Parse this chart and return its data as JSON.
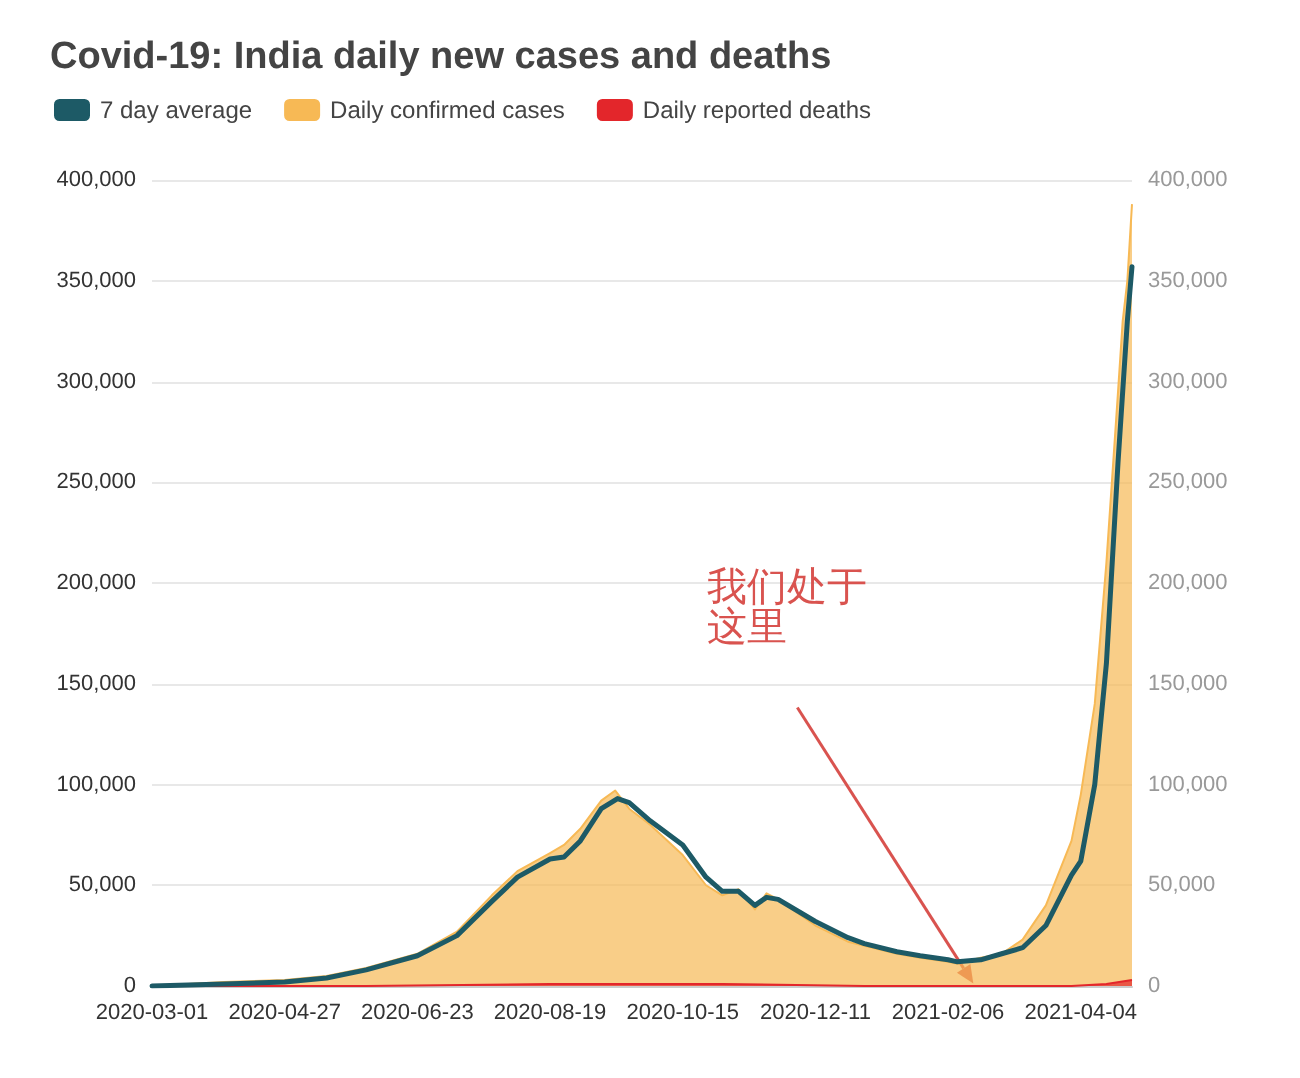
{
  "chart_data": {
    "type": "line",
    "title": "Covid-19: India daily new cases and deaths",
    "xlim": [
      "2020-03-01",
      "2021-04-26"
    ],
    "xticks": [
      "2020-03-01",
      "2020-04-27",
      "2020-06-23",
      "2020-08-19",
      "2020-10-15",
      "2020-12-11",
      "2021-02-06",
      "2021-04-04"
    ],
    "ylim": [
      0,
      400000
    ],
    "yticks": [
      {
        "value": 0,
        "label": "0"
      },
      {
        "value": 50000,
        "label": "50,000"
      },
      {
        "value": 100000,
        "label": "100,000"
      },
      {
        "value": 150000,
        "label": "150,000"
      },
      {
        "value": 200000,
        "label": "200,000"
      },
      {
        "value": 250000,
        "label": "250,000"
      },
      {
        "value": 300000,
        "label": "300,000"
      },
      {
        "value": 350000,
        "label": "350,000"
      },
      {
        "value": 400000,
        "label": "400,000"
      }
    ],
    "y2lim": [
      0,
      400000
    ],
    "y2ticks": [
      {
        "value": 0,
        "label": "0"
      },
      {
        "value": 50000,
        "label": "50,000"
      },
      {
        "value": 100000,
        "label": "100,000"
      },
      {
        "value": 150000,
        "label": "150,000"
      },
      {
        "value": 200000,
        "label": "200,000"
      },
      {
        "value": 250000,
        "label": "250,000"
      },
      {
        "value": 300000,
        "label": "300,000"
      },
      {
        "value": 350000,
        "label": "350,000"
      },
      {
        "value": 400000,
        "label": "400,000"
      }
    ],
    "grid": "y",
    "legend": "top left",
    "marker": "none",
    "line_style": "solid",
    "series": [
      {
        "name": "7 day average",
        "color": "#1d5a66",
        "x": [
          "2020-03-01",
          "2020-04-01",
          "2020-04-27",
          "2020-05-15",
          "2020-06-01",
          "2020-06-23",
          "2020-07-10",
          "2020-07-25",
          "2020-08-05",
          "2020-08-19",
          "2020-08-25",
          "2020-09-01",
          "2020-09-10",
          "2020-09-17",
          "2020-09-22",
          "2020-10-01",
          "2020-10-15",
          "2020-10-25",
          "2020-11-01",
          "2020-11-08",
          "2020-11-15",
          "2020-11-20",
          "2020-11-25",
          "2020-12-11",
          "2020-12-25",
          "2021-01-01",
          "2021-01-15",
          "2021-01-25",
          "2021-02-06",
          "2021-02-10",
          "2021-02-20",
          "2021-03-01",
          "2021-03-10",
          "2021-03-20",
          "2021-03-31",
          "2021-04-04",
          "2021-04-10",
          "2021-04-15",
          "2021-04-20",
          "2021-04-24",
          "2021-04-26"
        ],
        "values": [
          0,
          1000,
          2000,
          4000,
          8000,
          15000,
          25000,
          42000,
          54000,
          63000,
          64000,
          72000,
          88000,
          93000,
          91000,
          82000,
          70000,
          54000,
          47000,
          47000,
          40000,
          44000,
          43000,
          32000,
          24000,
          21000,
          17000,
          15000,
          13000,
          12000,
          13000,
          16000,
          19000,
          30000,
          55000,
          62000,
          100000,
          160000,
          260000,
          330000,
          357000
        ]
      },
      {
        "name": "Daily confirmed cases",
        "type": "area",
        "color": "#f7b955",
        "x": [
          "2020-03-01",
          "2020-04-01",
          "2020-04-27",
          "2020-05-15",
          "2020-06-01",
          "2020-06-23",
          "2020-07-10",
          "2020-07-25",
          "2020-08-05",
          "2020-08-19",
          "2020-08-25",
          "2020-09-01",
          "2020-09-10",
          "2020-09-16",
          "2020-09-22",
          "2020-10-01",
          "2020-10-15",
          "2020-10-25",
          "2020-11-01",
          "2020-11-08",
          "2020-11-15",
          "2020-11-20",
          "2020-11-25",
          "2020-12-11",
          "2020-12-25",
          "2021-01-01",
          "2021-01-15",
          "2021-01-25",
          "2021-02-06",
          "2021-02-10",
          "2021-02-20",
          "2021-03-01",
          "2021-03-10",
          "2021-03-20",
          "2021-03-31",
          "2021-04-04",
          "2021-04-10",
          "2021-04-15",
          "2021-04-20",
          "2021-04-22",
          "2021-04-24",
          "2021-04-26"
        ],
        "values": [
          0,
          2000,
          3000,
          5000,
          9000,
          16000,
          27000,
          45000,
          57000,
          66000,
          70000,
          78000,
          92000,
          97000,
          88000,
          80000,
          65000,
          50000,
          45000,
          48000,
          38000,
          46000,
          43000,
          30000,
          22000,
          20000,
          16000,
          14000,
          12000,
          11000,
          14000,
          16000,
          23000,
          40000,
          72000,
          95000,
          140000,
          210000,
          295000,
          330000,
          350000,
          388000
        ]
      },
      {
        "name": "Daily reported deaths",
        "type": "area",
        "color": "#e3262b",
        "x": [
          "2020-03-01",
          "2020-06-01",
          "2020-08-19",
          "2020-09-17",
          "2020-11-01",
          "2021-01-01",
          "2021-02-06",
          "2021-03-31",
          "2021-04-15",
          "2021-04-26"
        ],
        "values": [
          0,
          0,
          1000,
          1000,
          1000,
          0,
          0,
          0,
          1000,
          3000
        ]
      }
    ],
    "annotations": [
      "我们处于这里"
    ]
  }
}
